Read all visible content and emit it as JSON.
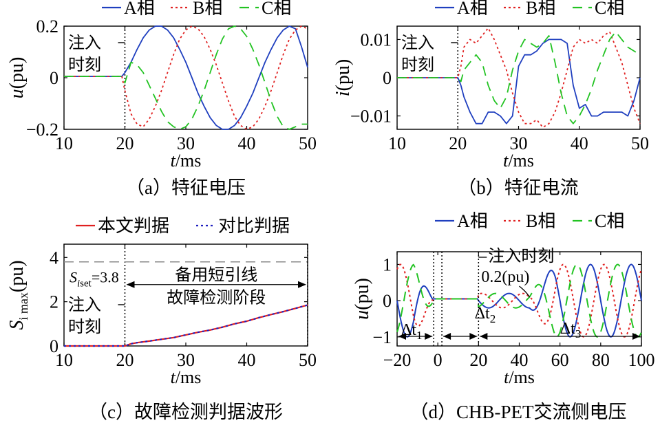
{
  "chart_data": [
    {
      "type": "line",
      "caption": "（a）特征电压",
      "xlabel_var": "t",
      "xlabel_unit": "/ms",
      "ylabel_var": "u",
      "ylabel_unit": "(pu)",
      "xlim": [
        10,
        50
      ],
      "ylim": [
        -0.2,
        0.2
      ],
      "xticks": [
        10,
        20,
        30,
        40,
        50
      ],
      "yticks": [
        -0.2,
        0,
        0.2
      ],
      "ytick_labels": [
        "−0.2",
        "0",
        "0.2"
      ],
      "annotation": [
        "注入",
        "时刻"
      ],
      "injection_time": 20,
      "legend": [
        "A相",
        "B相",
        "C相"
      ],
      "series": [
        {
          "name": "A相",
          "color": "#1f3fbf",
          "style": "solid",
          "x": [
            10,
            19.5,
            20,
            21,
            22,
            23,
            24,
            25,
            26,
            27,
            28,
            29,
            30,
            31,
            32,
            33,
            34,
            35,
            36,
            37,
            38,
            39,
            40,
            41,
            42,
            43,
            44,
            45,
            46,
            47,
            48,
            49,
            50
          ],
          "y": [
            0.005,
            0.005,
            0.02,
            0.06,
            0.11,
            0.155,
            0.185,
            0.2,
            0.2,
            0.185,
            0.155,
            0.11,
            0.06,
            0.0,
            -0.06,
            -0.11,
            -0.155,
            -0.185,
            -0.2,
            -0.2,
            -0.185,
            -0.155,
            -0.11,
            -0.06,
            0.0,
            0.06,
            0.11,
            0.155,
            0.185,
            0.2,
            0.19,
            0.12,
            0.04
          ]
        },
        {
          "name": "B相",
          "color": "#e02020",
          "style": "dotted",
          "x": [
            10,
            19.5,
            20,
            21,
            22,
            23,
            24,
            25,
            26,
            27,
            28,
            29,
            30,
            31,
            32,
            33,
            34,
            35,
            36,
            37,
            38,
            39,
            40,
            41,
            42,
            43,
            44,
            45,
            46,
            47,
            48,
            49,
            50
          ],
          "y": [
            0.005,
            0.005,
            -0.05,
            -0.14,
            -0.18,
            -0.19,
            -0.16,
            -0.11,
            -0.05,
            0.02,
            0.09,
            0.15,
            0.185,
            0.2,
            0.19,
            0.16,
            0.11,
            0.05,
            -0.02,
            -0.09,
            -0.15,
            -0.185,
            -0.2,
            -0.19,
            -0.16,
            -0.11,
            -0.05,
            0.02,
            0.09,
            0.15,
            0.185,
            0.2,
            0.19
          ]
        },
        {
          "name": "C相",
          "color": "#22c322",
          "style": "dashed",
          "x": [
            10,
            19.5,
            20,
            21,
            22,
            23,
            24,
            25,
            26,
            27,
            28,
            29,
            30,
            31,
            32,
            33,
            34,
            35,
            36,
            37,
            38,
            39,
            40,
            41,
            42,
            43,
            44,
            45,
            46,
            47,
            48,
            49,
            50
          ],
          "y": [
            0.005,
            0.005,
            -0.02,
            0.06,
            0.05,
            0.02,
            -0.03,
            -0.08,
            -0.13,
            -0.17,
            -0.19,
            -0.2,
            -0.19,
            -0.16,
            -0.11,
            -0.05,
            0.02,
            0.09,
            0.15,
            0.19,
            0.2,
            0.19,
            0.16,
            0.11,
            0.05,
            -0.02,
            -0.09,
            -0.15,
            -0.19,
            -0.2,
            -0.19,
            -0.18,
            -0.18
          ]
        }
      ]
    },
    {
      "type": "line",
      "caption": "（b）特征电流",
      "xlabel_var": "t",
      "xlabel_unit": "/ms",
      "ylabel_var": "i",
      "ylabel_unit": "(pu)",
      "xlim": [
        10,
        50
      ],
      "ylim": [
        -0.0135,
        0.0135
      ],
      "xticks": [
        10,
        20,
        30,
        40,
        50
      ],
      "yticks": [
        -0.01,
        0,
        0.01
      ],
      "ytick_labels": [
        "−0.01",
        "0",
        "0.01"
      ],
      "annotation": [
        "注入",
        "时刻"
      ],
      "injection_time": 20,
      "legend": [
        "A相",
        "B相",
        "C相"
      ],
      "series": [
        {
          "name": "A相",
          "color": "#1f3fbf",
          "style": "solid",
          "x": [
            10,
            20,
            20.5,
            21,
            22,
            23,
            24,
            25,
            26,
            27,
            28,
            29,
            30,
            31,
            32,
            33,
            34,
            35,
            36,
            37,
            38,
            39,
            40,
            41,
            42,
            43,
            44,
            45,
            46,
            47,
            48,
            49,
            50
          ],
          "y": [
            0,
            0,
            -0.002,
            -0.005,
            -0.009,
            -0.012,
            -0.012,
            -0.009,
            -0.009,
            -0.01,
            -0.012,
            -0.01,
            0.003,
            0.006,
            0.006,
            0.007,
            0.009,
            0.01,
            0.01,
            0.01,
            0.009,
            -0.002,
            -0.008,
            -0.007,
            -0.01,
            -0.01,
            -0.009,
            -0.009,
            -0.009,
            -0.009,
            -0.01,
            -0.006,
            0.0
          ]
        },
        {
          "name": "B相",
          "color": "#e02020",
          "style": "dotted",
          "x": [
            10,
            20,
            20.5,
            21,
            22,
            23,
            24,
            25,
            26,
            27,
            28,
            29,
            30,
            31,
            32,
            33,
            34,
            35,
            36,
            37,
            38,
            39,
            40,
            41,
            42,
            43,
            44,
            45,
            46,
            47,
            48,
            49,
            50
          ],
          "y": [
            0,
            0,
            0.003,
            0.008,
            0.01,
            0.009,
            0.011,
            0.013,
            0.01,
            0.006,
            0.002,
            -0.004,
            -0.009,
            -0.012,
            -0.012,
            -0.011,
            -0.013,
            -0.012,
            -0.009,
            -0.004,
            0.002,
            0.008,
            0.01,
            0.009,
            0.01,
            0.009,
            0.011,
            0.012,
            0.008,
            0.004,
            -0.002,
            -0.008,
            -0.012
          ]
        },
        {
          "name": "C相",
          "color": "#22c322",
          "style": "dashed",
          "x": [
            10,
            20,
            20.5,
            21,
            22,
            23,
            24,
            25,
            26,
            27,
            28,
            29,
            30,
            31,
            32,
            33,
            34,
            35,
            36,
            37,
            38,
            39,
            40,
            41,
            42,
            43,
            44,
            45,
            46,
            47,
            48,
            49,
            50
          ],
          "y": [
            0,
            0,
            -0.001,
            0.002,
            0.004,
            0.006,
            0.004,
            -0.002,
            -0.006,
            -0.008,
            -0.005,
            0.002,
            0.007,
            0.01,
            0.009,
            0.008,
            0.009,
            0.011,
            0.004,
            -0.004,
            -0.01,
            -0.012,
            -0.01,
            -0.007,
            -0.003,
            0.002,
            0.006,
            0.01,
            0.012,
            0.01,
            0.008,
            0.007,
            0.006
          ]
        }
      ]
    },
    {
      "type": "line",
      "caption": "（c）故障检测判据波形",
      "xlabel_var": "t",
      "xlabel_unit": "/ms",
      "ylabel_var": "S",
      "ylabel_sub": "i max",
      "ylabel_unit": "(pu)",
      "xlim": [
        10,
        50
      ],
      "ylim": [
        0,
        4.6
      ],
      "xticks": [
        10,
        20,
        30,
        40,
        50
      ],
      "yticks": [
        0,
        2,
        4
      ],
      "ytick_labels": [
        "0",
        "2",
        "4"
      ],
      "annotation": [
        "注入",
        "时刻"
      ],
      "injection_time": 20,
      "threshold": {
        "label_var": "S",
        "label_sub": "i",
        "label_sub2": "set",
        "label_value": "=3.8",
        "value": 3.8
      },
      "stage_label": [
        "备用短引线",
        "故障检测阶段"
      ],
      "legend": [
        "本文判据",
        "对比判据"
      ],
      "series": [
        {
          "name": "本文判据",
          "color": "#e02020",
          "style": "solid",
          "x": [
            10,
            20,
            21,
            22,
            24,
            26,
            28,
            30,
            32,
            34,
            36,
            38,
            40,
            42,
            44,
            46,
            48,
            50
          ],
          "y": [
            0,
            0,
            0.1,
            0.15,
            0.22,
            0.3,
            0.38,
            0.5,
            0.62,
            0.72,
            0.85,
            1.0,
            1.12,
            1.28,
            1.42,
            1.55,
            1.7,
            1.85
          ]
        },
        {
          "name": "对比判据",
          "color": "#2020c0",
          "style": "dotted",
          "x": [
            10,
            20,
            21,
            22,
            24,
            26,
            28,
            30,
            32,
            34,
            36,
            38,
            40,
            42,
            44,
            46,
            48,
            50
          ],
          "y": [
            0,
            0,
            0.1,
            0.15,
            0.22,
            0.3,
            0.38,
            0.5,
            0.62,
            0.72,
            0.85,
            1.0,
            1.12,
            1.28,
            1.42,
            1.55,
            1.7,
            1.85
          ]
        }
      ]
    },
    {
      "type": "line",
      "caption": "（d）CHB-PET交流侧电压",
      "xlabel_var": "t",
      "xlabel_unit": "/ms",
      "ylabel_var": "u",
      "ylabel_unit": "(pu)",
      "xlim": [
        -20,
        100
      ],
      "ylim": [
        -1.25,
        1.35
      ],
      "xticks": [
        -20,
        0,
        20,
        40,
        60,
        80,
        100
      ],
      "xtick_labels": [
        "−20",
        "0",
        "20",
        "40",
        "60",
        "80",
        "100"
      ],
      "yticks": [
        -1,
        0,
        1
      ],
      "ytick_labels": [
        "−1",
        "0",
        "1"
      ],
      "annotation_inject": "注入时刻",
      "annotation_amp": "0.2(pu)",
      "dt_labels": [
        "Δt",
        "1",
        "Δt",
        "2",
        "Δt",
        "3"
      ],
      "legend": [
        "A相",
        "B相",
        "C相"
      ],
      "series": [
        {
          "name": "A相",
          "color": "#1f3fbf",
          "style": "solid"
        },
        {
          "name": "B相",
          "color": "#e02020",
          "style": "dotted"
        },
        {
          "name": "C相",
          "color": "#22c322",
          "style": "dashed"
        }
      ]
    }
  ]
}
